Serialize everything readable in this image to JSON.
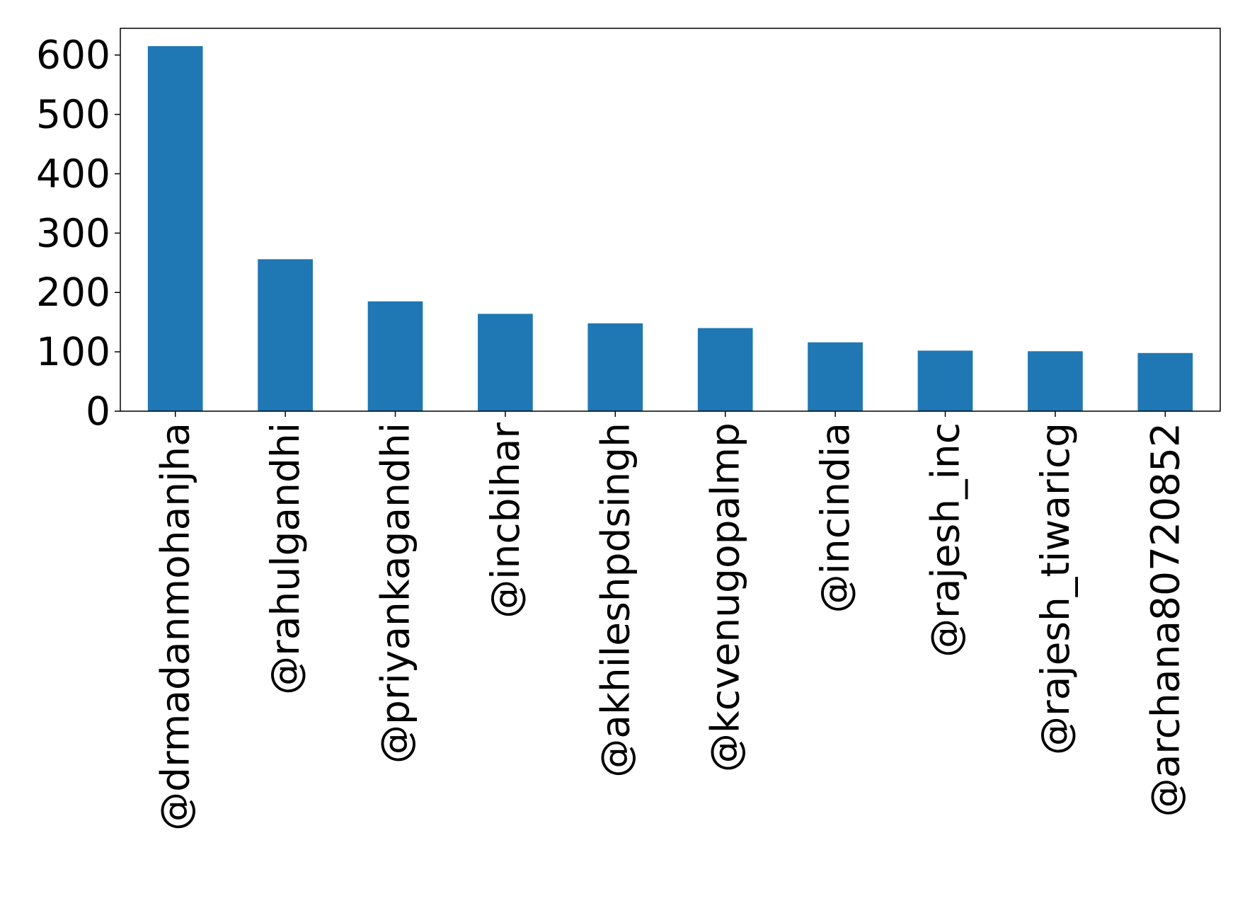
{
  "chart_data": {
    "type": "bar",
    "title": "",
    "xlabel": "",
    "ylabel": "",
    "categories": [
      "@drmadanmohanjha",
      "@rahulgandhi",
      "@priyankagandhi",
      "@incbihar",
      "@akhileshpdsingh",
      "@kcvenugopalmp",
      "@incindia",
      "@rajesh_inc",
      "@rajesh_tiwaricg",
      "@archana80720852"
    ],
    "values": [
      615,
      256,
      185,
      164,
      148,
      140,
      116,
      102,
      101,
      98
    ],
    "ylim": [
      0,
      645
    ],
    "yticks": [
      0,
      100,
      200,
      300,
      400,
      500,
      600
    ],
    "grid": false,
    "legend": "none",
    "bar_color": "#1f77b4"
  }
}
